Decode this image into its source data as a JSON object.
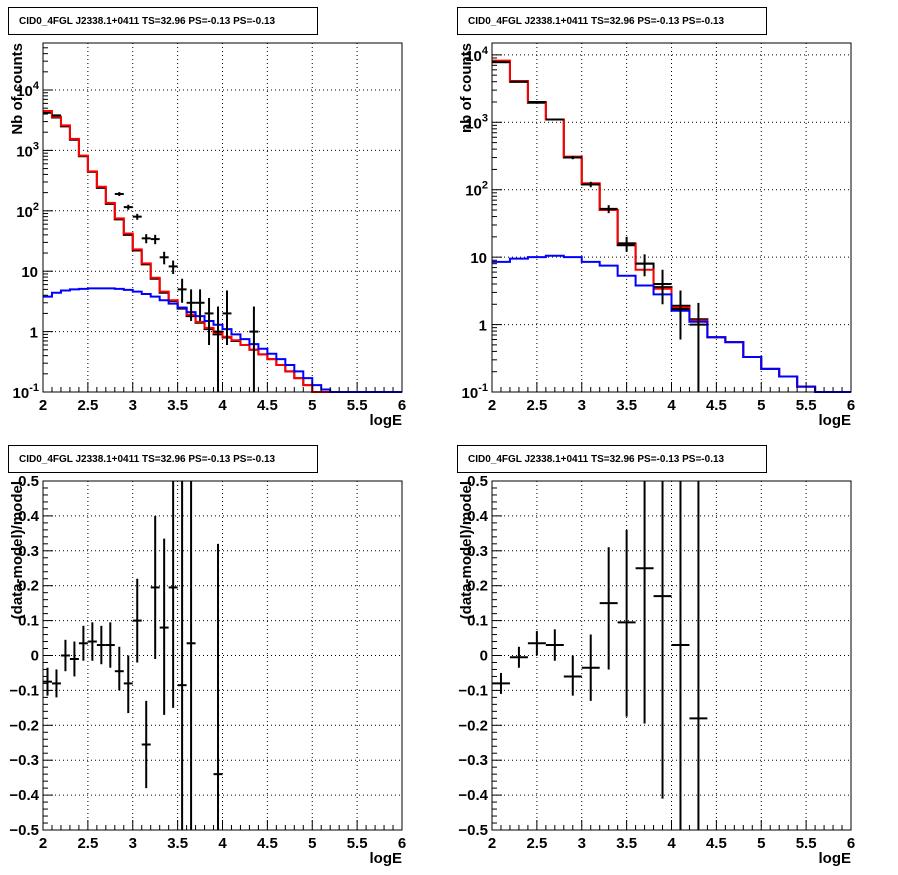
{
  "chart_data": [
    {
      "type": "line",
      "title": "CID0_4FGL J2338.1+0411 TS=32.96 PS=-0.13 PS=-0.13",
      "xlabel": "logE",
      "ylabel": "Nb of counts",
      "xlim": [
        2,
        6
      ],
      "ylim": [
        0.1,
        60000
      ],
      "yscale": "log",
      "grid": true,
      "x_ticks": [
        "2",
        "2.5",
        "3",
        "3.5",
        "4",
        "4.5",
        "5",
        "5.5",
        "6"
      ],
      "y_ticks": [
        "10^-1",
        "1",
        "10",
        "10^2",
        "10^3",
        "10^4"
      ],
      "bin_edges": [
        2.0,
        2.1,
        2.2,
        2.3,
        2.4,
        2.5,
        2.6,
        2.7,
        2.8,
        2.9,
        3.0,
        3.1,
        3.2,
        3.3,
        3.4,
        3.5,
        3.6,
        3.7,
        3.8,
        3.9,
        4.0,
        4.1,
        4.2,
        4.3,
        4.4,
        4.5,
        4.6,
        4.7,
        4.8,
        4.9,
        5.0,
        5.1,
        5.2,
        5.3,
        5.4,
        5.5,
        5.6,
        5.7,
        5.8,
        5.9,
        6.0
      ],
      "series": [
        {
          "color": "#000000",
          "style": "histogram",
          "values": [
            4200,
            3500,
            2500,
            1500,
            800,
            440,
            240,
            130,
            72,
            40,
            22,
            13,
            7.5,
            4.4,
            3.2,
            2.4,
            1.8,
            1.4,
            1.1,
            0.9,
            0.8,
            0.7,
            0.6,
            0.5,
            0.42,
            0.35,
            0.28,
            0.22,
            0.17,
            0.13,
            0.1,
            0.1,
            0.1,
            0.1,
            0.1,
            0.1,
            0.1,
            0.1,
            0.1,
            0.1
          ]
        },
        {
          "color": "#ff0000",
          "style": "histogram",
          "values": [
            4500,
            3600,
            2600,
            1550,
            820,
            450,
            250,
            135,
            75,
            42,
            23,
            13.5,
            7.8,
            4.6,
            3.3,
            2.5,
            1.9,
            1.45,
            1.15,
            0.95,
            0.82,
            0.72,
            0.6,
            0.5,
            0.42,
            0.35,
            0.28,
            0.22,
            0.17,
            0.13,
            0.1,
            0.1,
            0.1,
            0.1,
            0.1,
            0.1,
            0.1,
            0.1,
            0.1,
            0.1
          ]
        },
        {
          "color": "#0000ff",
          "style": "histogram",
          "values": [
            3.8,
            4.4,
            4.8,
            5.0,
            5.1,
            5.2,
            5.2,
            5.2,
            5.1,
            4.9,
            4.6,
            4.2,
            3.8,
            3.3,
            2.9,
            2.5,
            2.1,
            1.8,
            1.5,
            1.3,
            1.1,
            0.9,
            0.75,
            0.62,
            0.52,
            0.43,
            0.35,
            0.28,
            0.22,
            0.17,
            0.13,
            0.11,
            0.1,
            0.1,
            0.1,
            0.1,
            0.1,
            0.1,
            0.1,
            0.1
          ]
        }
      ],
      "points": [
        {
          "x": 2.15,
          "y": 3800,
          "xerr": 0.05,
          "ylo": 3740,
          "yhi": 3860
        },
        {
          "x": 2.85,
          "y": 190,
          "xerr": 0.05,
          "ylo": 176,
          "yhi": 204
        },
        {
          "x": 2.95,
          "y": 115,
          "xerr": 0.05,
          "ylo": 104,
          "yhi": 126
        },
        {
          "x": 3.05,
          "y": 80,
          "xerr": 0.05,
          "ylo": 71,
          "yhi": 89
        },
        {
          "x": 3.15,
          "y": 35,
          "xerr": 0.05,
          "ylo": 29,
          "yhi": 41
        },
        {
          "x": 3.25,
          "y": 34,
          "xerr": 0.05,
          "ylo": 28,
          "yhi": 40
        },
        {
          "x": 3.35,
          "y": 17,
          "xerr": 0.05,
          "ylo": 13,
          "yhi": 21
        },
        {
          "x": 3.45,
          "y": 12,
          "xerr": 0.05,
          "ylo": 9,
          "yhi": 15
        },
        {
          "x": 3.55,
          "y": 5,
          "xerr": 0.05,
          "ylo": 3,
          "yhi": 7.5
        },
        {
          "x": 3.65,
          "y": 3,
          "xerr": 0.05,
          "ylo": 1.5,
          "yhi": 5
        },
        {
          "x": 3.75,
          "y": 3,
          "xerr": 0.05,
          "ylo": 1.5,
          "yhi": 5
        },
        {
          "x": 3.85,
          "y": 2,
          "xerr": 0.05,
          "ylo": 0.6,
          "yhi": 3.6
        },
        {
          "x": 3.95,
          "y": 1,
          "xerr": 0.05,
          "ylo": 0.1,
          "yhi": 2.6
        },
        {
          "x": 4.05,
          "y": 2,
          "xerr": 0.05,
          "ylo": 0.6,
          "yhi": 4.8
        },
        {
          "x": 4.35,
          "y": 1,
          "xerr": 0.05,
          "ylo": 0.1,
          "yhi": 2.6
        }
      ]
    },
    {
      "type": "line",
      "title": "CID0_4FGL J2338.1+0411 TS=32.96 PS=-0.13 PS=-0.13",
      "xlabel": "logE",
      "ylabel": "nb of counts",
      "xlim": [
        2,
        6
      ],
      "ylim": [
        0.1,
        15000
      ],
      "yscale": "log",
      "grid": true,
      "x_ticks": [
        "2",
        "2.5",
        "3",
        "3.5",
        "4",
        "4.5",
        "5",
        "5.5",
        "6"
      ],
      "y_ticks": [
        "10^-1",
        "1",
        "10",
        "10^2",
        "10^3",
        "10^4"
      ],
      "bin_edges": [
        2.0,
        2.2,
        2.4,
        2.6,
        2.8,
        3.0,
        3.2,
        3.4,
        3.6,
        3.8,
        4.0,
        4.2,
        4.4,
        4.6,
        4.8,
        5.0,
        5.2,
        5.4,
        5.6,
        5.8,
        6.0
      ],
      "series": [
        {
          "color": "#000000",
          "style": "histogram",
          "values": [
            7800,
            4000,
            1950,
            1100,
            300,
            120,
            50,
            15,
            8,
            3.6,
            1.9,
            1.2,
            0.65,
            0.55,
            0.33,
            0.22,
            0.17,
            0.12,
            0.1,
            0.1
          ]
        },
        {
          "color": "#ff0000",
          "style": "histogram",
          "values": [
            8200,
            4100,
            2000,
            1100,
            310,
            125,
            50,
            16,
            6.5,
            3.4,
            1.8,
            1.15,
            0.65,
            0.55,
            0.33,
            0.22,
            0.17,
            0.12,
            0.1,
            0.1
          ]
        },
        {
          "color": "#0000ff",
          "style": "histogram",
          "values": [
            8.5,
            9.5,
            10,
            10.5,
            10,
            8.5,
            7.5,
            5.3,
            3.8,
            2.8,
            1.6,
            1.1,
            0.65,
            0.55,
            0.33,
            0.22,
            0.17,
            0.12,
            0.1,
            0.1
          ]
        }
      ],
      "points": [
        {
          "x": 2.1,
          "y": 7800,
          "xerr": 0.1,
          "ylo": 7700,
          "yhi": 7900
        },
        {
          "x": 2.3,
          "y": 4000,
          "xerr": 0.1,
          "ylo": 3930,
          "yhi": 4070
        },
        {
          "x": 2.5,
          "y": 2000,
          "xerr": 0.1,
          "ylo": 1950,
          "yhi": 2050
        },
        {
          "x": 2.7,
          "y": 1100,
          "xerr": 0.1,
          "ylo": 1070,
          "yhi": 1130
        },
        {
          "x": 2.9,
          "y": 300,
          "xerr": 0.1,
          "ylo": 283,
          "yhi": 317
        },
        {
          "x": 3.1,
          "y": 120,
          "xerr": 0.1,
          "ylo": 109,
          "yhi": 131
        },
        {
          "x": 3.3,
          "y": 52,
          "xerr": 0.1,
          "ylo": 45,
          "yhi": 59
        },
        {
          "x": 3.5,
          "y": 16,
          "xerr": 0.1,
          "ylo": 12,
          "yhi": 20
        },
        {
          "x": 3.7,
          "y": 8,
          "xerr": 0.1,
          "ylo": 5.2,
          "yhi": 11
        },
        {
          "x": 3.9,
          "y": 4,
          "xerr": 0.1,
          "ylo": 2,
          "yhi": 6.5
        },
        {
          "x": 4.1,
          "y": 1.7,
          "xerr": 0.1,
          "ylo": 0.6,
          "yhi": 3.2
        },
        {
          "x": 4.3,
          "y": 1,
          "xerr": 0.1,
          "ylo": 0.1,
          "yhi": 2.1
        }
      ]
    },
    {
      "type": "scatter",
      "title": "CID0_4FGL J2338.1+0411 TS=32.96 PS=-0.13 PS=-0.13",
      "xlabel": "logE",
      "ylabel": "(data-model)/model",
      "xlim": [
        2,
        6
      ],
      "ylim": [
        -0.5,
        0.5
      ],
      "grid": true,
      "x_ticks": [
        "2",
        "2.5",
        "3",
        "3.5",
        "4",
        "4.5",
        "5",
        "5.5",
        "6"
      ],
      "y_ticks": [
        "−0.5",
        "−0.4",
        "−0.3",
        "−0.2",
        "−0.1",
        "0",
        "0.1",
        "0.2",
        "0.3",
        "0.4",
        "0.5"
      ],
      "points": [
        {
          "x": 2.05,
          "y": -0.075,
          "xerr": 0.05,
          "ylo": -0.115,
          "yhi": -0.035
        },
        {
          "x": 2.15,
          "y": -0.08,
          "xerr": 0.05,
          "ylo": -0.12,
          "yhi": -0.04
        },
        {
          "x": 2.25,
          "y": 0.0,
          "xerr": 0.05,
          "ylo": -0.045,
          "yhi": 0.045
        },
        {
          "x": 2.35,
          "y": -0.01,
          "xerr": 0.05,
          "ylo": -0.06,
          "yhi": 0.04
        },
        {
          "x": 2.45,
          "y": 0.035,
          "xerr": 0.05,
          "ylo": -0.015,
          "yhi": 0.085
        },
        {
          "x": 2.55,
          "y": 0.04,
          "xerr": 0.05,
          "ylo": -0.015,
          "yhi": 0.095
        },
        {
          "x": 2.65,
          "y": 0.03,
          "xerr": 0.05,
          "ylo": -0.025,
          "yhi": 0.085
        },
        {
          "x": 2.75,
          "y": 0.03,
          "xerr": 0.05,
          "ylo": -0.035,
          "yhi": 0.095
        },
        {
          "x": 2.85,
          "y": -0.045,
          "xerr": 0.05,
          "ylo": -0.1,
          "yhi": 0.025
        },
        {
          "x": 2.95,
          "y": -0.08,
          "xerr": 0.05,
          "ylo": -0.165,
          "yhi": 0.0
        },
        {
          "x": 3.05,
          "y": 0.1,
          "xerr": 0.05,
          "ylo": -0.02,
          "yhi": 0.22
        },
        {
          "x": 3.15,
          "y": -0.255,
          "xerr": 0.05,
          "ylo": -0.38,
          "yhi": -0.13
        },
        {
          "x": 3.25,
          "y": 0.195,
          "xerr": 0.05,
          "ylo": -0.01,
          "yhi": 0.4
        },
        {
          "x": 3.35,
          "y": 0.08,
          "xerr": 0.05,
          "ylo": -0.17,
          "yhi": 0.335
        },
        {
          "x": 3.45,
          "y": 0.195,
          "xerr": 0.05,
          "ylo": -0.15,
          "yhi": 0.5
        },
        {
          "x": 3.55,
          "y": -0.085,
          "xerr": 0.05,
          "ylo": -0.5,
          "yhi": 0.5
        },
        {
          "x": 3.65,
          "y": 0.035,
          "xerr": 0.05,
          "ylo": -0.5,
          "yhi": 0.5
        },
        {
          "x": 3.95,
          "y": -0.34,
          "xerr": 0.05,
          "ylo": -0.5,
          "yhi": 0.32
        }
      ]
    },
    {
      "type": "scatter",
      "title": "CID0_4FGL J2338.1+0411 TS=32.96 PS=-0.13 PS=-0.13",
      "xlabel": "logE",
      "ylabel": "(data-model)/model",
      "xlim": [
        2,
        6
      ],
      "ylim": [
        -0.5,
        0.5
      ],
      "grid": true,
      "x_ticks": [
        "2",
        "2.5",
        "3",
        "3.5",
        "4",
        "4.5",
        "5",
        "5.5",
        "6"
      ],
      "y_ticks": [
        "−0.5",
        "−0.4",
        "−0.3",
        "−0.2",
        "−0.1",
        "0",
        "0.1",
        "0.2",
        "0.3",
        "0.4",
        "0.5"
      ],
      "points": [
        {
          "x": 2.1,
          "y": -0.08,
          "xerr": 0.1,
          "ylo": -0.11,
          "yhi": -0.05
        },
        {
          "x": 2.3,
          "y": -0.005,
          "xerr": 0.1,
          "ylo": -0.035,
          "yhi": 0.025
        },
        {
          "x": 2.5,
          "y": 0.035,
          "xerr": 0.1,
          "ylo": 0.0,
          "yhi": 0.07
        },
        {
          "x": 2.7,
          "y": 0.03,
          "xerr": 0.1,
          "ylo": -0.015,
          "yhi": 0.075
        },
        {
          "x": 2.9,
          "y": -0.06,
          "xerr": 0.1,
          "ylo": -0.115,
          "yhi": 0.0
        },
        {
          "x": 3.1,
          "y": -0.035,
          "xerr": 0.1,
          "ylo": -0.13,
          "yhi": 0.06
        },
        {
          "x": 3.3,
          "y": 0.15,
          "xerr": 0.1,
          "ylo": -0.04,
          "yhi": 0.31
        },
        {
          "x": 3.5,
          "y": 0.095,
          "xerr": 0.1,
          "ylo": -0.175,
          "yhi": 0.36
        },
        {
          "x": 3.7,
          "y": 0.25,
          "xerr": 0.1,
          "ylo": -0.195,
          "yhi": 0.5
        },
        {
          "x": 3.9,
          "y": 0.17,
          "xerr": 0.1,
          "ylo": -0.41,
          "yhi": 0.5
        },
        {
          "x": 4.1,
          "y": 0.03,
          "xerr": 0.1,
          "ylo": -0.5,
          "yhi": 0.5
        },
        {
          "x": 4.3,
          "y": -0.18,
          "xerr": 0.1,
          "ylo": -0.5,
          "yhi": 0.5
        }
      ]
    }
  ]
}
